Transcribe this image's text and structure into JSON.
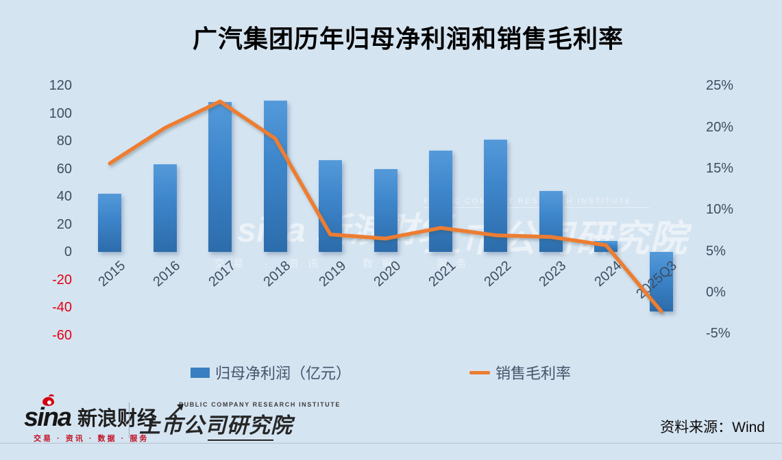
{
  "title": "广汽集团历年归母净利润和销售毛利率",
  "chart_data": {
    "type": "combo-bar-line",
    "title": "广汽集团历年归母净利润和销售毛利率",
    "categories": [
      "2015",
      "2016",
      "2017",
      "2018",
      "2019",
      "2020",
      "2021",
      "2022",
      "2023",
      "2024",
      "2025Q3"
    ],
    "series": [
      {
        "name": "归母净利润（亿元）",
        "type": "bar",
        "axis": "left",
        "color": "#3a7fc1",
        "values": [
          42,
          63,
          108,
          109,
          66,
          60,
          73,
          81,
          44,
          8,
          -43
        ]
      },
      {
        "name": "销售毛利率",
        "type": "line",
        "axis": "right",
        "color": "#ED7D31",
        "values": [
          15.6,
          19.9,
          23.1,
          18.6,
          7.0,
          6.5,
          7.8,
          6.9,
          6.7,
          5.7,
          -2.3
        ]
      }
    ],
    "left_axis": {
      "min": -60,
      "max": 120,
      "ticks": [
        120,
        100,
        80,
        60,
        40,
        20,
        0,
        -20,
        -40,
        -60
      ],
      "unit": "亿元"
    },
    "right_axis": {
      "min": -5,
      "max": 25,
      "ticks": [
        "25%",
        "20%",
        "15%",
        "10%",
        "5%",
        "0%",
        "-5%"
      ]
    },
    "grid": false,
    "legend_position": "bottom"
  },
  "legend": {
    "bar_label": "归母净利润（亿元）",
    "line_label": "销售毛利率"
  },
  "watermarks": {
    "center_main": "sina 新浪财经",
    "center_sub": "交易 · 资讯 · 数据 · 服务",
    "right_sub": "PUBLIC COMPANY RESEARCH INSTITUTE",
    "right_main": "上市公司研究院"
  },
  "footer": {
    "sina_word": "sina",
    "sina_brand": "新浪财经",
    "sina_tagline": "交易 · 资讯 · 数据 · 服务",
    "pcri_small": "PUBLIC COMPANY RESEARCH INSTITUTE",
    "pcri_main": "上市公司研究院",
    "source": "资料来源：Wind"
  },
  "colors": {
    "background": "#d5e4f1",
    "bar": "#3a7fc1",
    "line": "#ED7D31",
    "axis_text": "#3f4d5e",
    "negative_tick": "#e60012"
  }
}
